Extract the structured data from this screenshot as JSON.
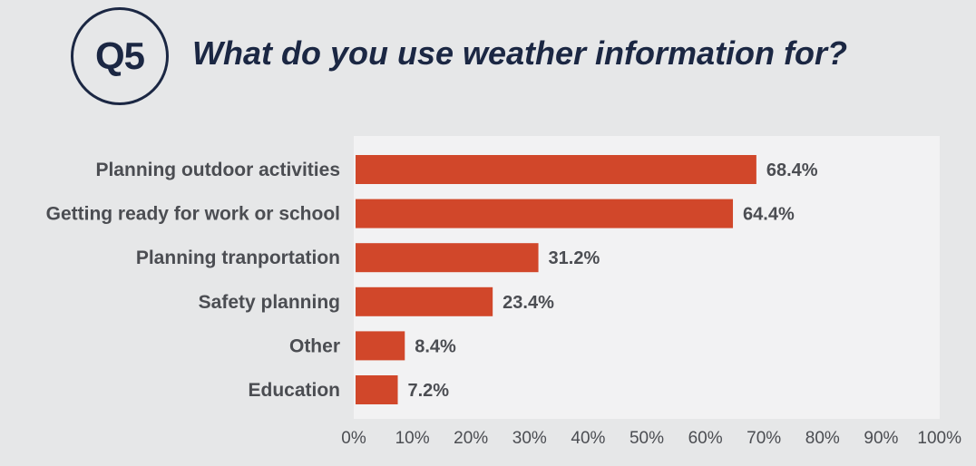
{
  "header": {
    "badge": "Q5",
    "question": "What do you use weather information for?"
  },
  "colors": {
    "background": "#e6e7e8",
    "plot_background": "#f2f2f3",
    "bar": "#d1472a",
    "text": "#4b4d52",
    "title": "#1b2743"
  },
  "chart_data": {
    "type": "bar",
    "orientation": "horizontal",
    "categories": [
      "Planning outdoor activities",
      "Getting ready for work or school",
      "Planning tranportation",
      "Safety planning",
      "Other",
      "Education"
    ],
    "values": [
      68.4,
      64.4,
      31.2,
      23.4,
      8.4,
      7.2
    ],
    "value_labels": [
      "68.4%",
      "64.4%",
      "31.2%",
      "23.4%",
      "8.4%",
      "7.2%"
    ],
    "xlim": [
      0,
      100
    ],
    "xticks": [
      "0%",
      "10%",
      "20%",
      "30%",
      "40%",
      "50%",
      "60%",
      "70%",
      "80%",
      "90%",
      "100%"
    ],
    "title": "What do you use weather information for?",
    "xlabel": "",
    "ylabel": "",
    "grid": false,
    "legend": "none"
  }
}
